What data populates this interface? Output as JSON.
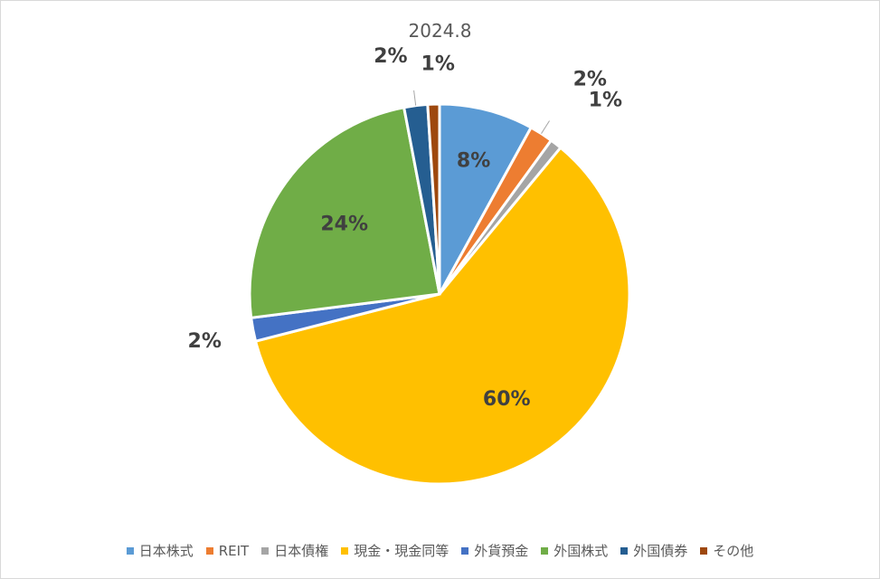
{
  "chart_data": {
    "type": "pie",
    "title": "2024.8",
    "categories": [
      "日本株式",
      "REIT",
      "日本債権",
      "現金・現金同等",
      "外貨預金",
      "外国株式",
      "外国債券",
      "その他"
    ],
    "values": [
      8,
      2,
      1,
      60,
      2,
      24,
      2,
      1
    ],
    "data_labels": [
      "8%",
      "2%",
      "1%",
      "60%",
      "2%",
      "24%",
      "2%",
      "1%"
    ],
    "colors": [
      "#5B9BD5",
      "#ED7D31",
      "#A5A5A5",
      "#FFC000",
      "#4472C4",
      "#70AD47",
      "#255E91",
      "#9E480E"
    ],
    "legend_position": "bottom"
  }
}
